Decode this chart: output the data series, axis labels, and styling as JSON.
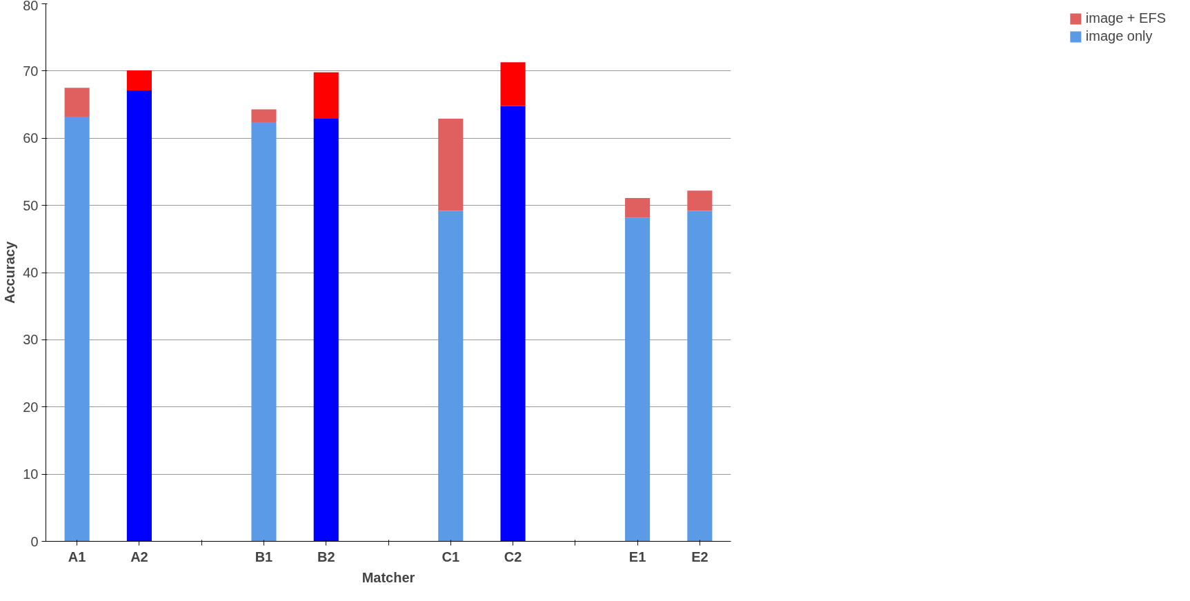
{
  "chart_data": {
    "type": "bar",
    "stacked": true,
    "xlabel": "Matcher",
    "ylabel": "Accuracy",
    "categories": [
      "A1",
      "A2",
      null,
      "B1",
      "B2",
      null,
      "C1",
      "C2",
      null,
      "E1",
      "E2"
    ],
    "series": [
      {
        "name": "image only",
        "color": "#5a9ae6",
        "colors": [
          "#5a9ae6",
          "#0000ff",
          null,
          "#5a9ae6",
          "#0000ff",
          null,
          "#5a9ae6",
          "#0000ff",
          null,
          "#5a9ae6",
          "#5a9ae6"
        ],
        "values": [
          63.2,
          67.1,
          null,
          62.4,
          62.9,
          null,
          49.2,
          64.8,
          null,
          48.2,
          49.2
        ]
      },
      {
        "name": "image + EFS",
        "color": "#e06060",
        "colors": [
          "#e06060",
          "#ff0000",
          null,
          "#e06060",
          "#ff0000",
          null,
          "#e06060",
          "#ff0000",
          null,
          "#e06060",
          "#e06060"
        ],
        "values": [
          4.3,
          3.0,
          null,
          1.9,
          6.9,
          null,
          13.7,
          6.5,
          null,
          2.9,
          3.0
        ]
      }
    ],
    "ylim": [
      0,
      80
    ],
    "yticks": [
      0,
      10,
      20,
      30,
      40,
      50,
      60,
      70,
      80
    ],
    "grid": "y",
    "legend": "right"
  }
}
